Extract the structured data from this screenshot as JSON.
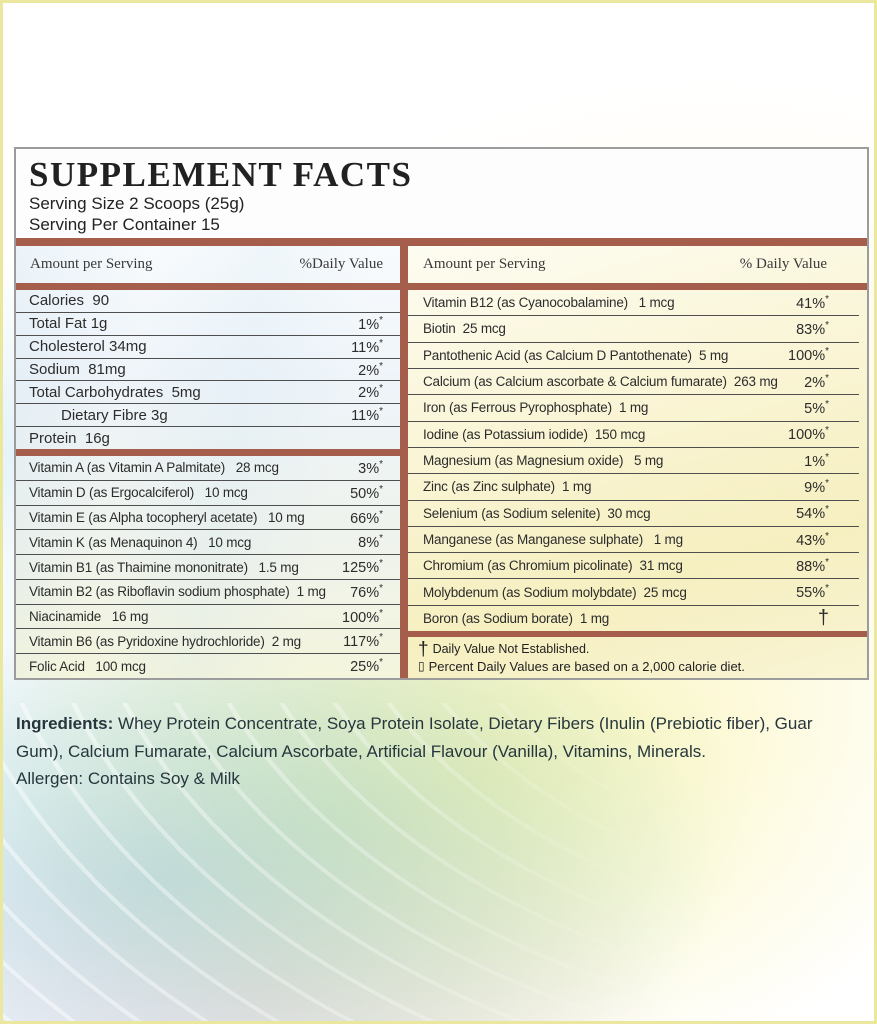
{
  "panel": {
    "title": "SUPPLEMENT FACTS",
    "serving_size": "Serving Size 2 Scoops (25g)",
    "serving_per_container": "Serving Per Container 15",
    "left": {
      "header_amount": "Amount per Serving",
      "header_dv": "%Daily Value",
      "macros": [
        {
          "name": "Calories  90",
          "dv": "",
          "sup": ""
        },
        {
          "name": "Total Fat 1g",
          "dv": "1%",
          "sup": "*"
        },
        {
          "name": "Cholesterol 34mg",
          "dv": "11%",
          "sup": "*"
        },
        {
          "name": "Sodium  81mg",
          "dv": "2%",
          "sup": "*"
        },
        {
          "name": "Total Carbohydrates  5mg",
          "dv": "2%",
          "sup": "*"
        },
        {
          "name": "Dietary Fibre 3g",
          "dv": "11%",
          "sup": "*",
          "cls": "indent"
        },
        {
          "name": "Protein  16g",
          "dv": "",
          "sup": ""
        }
      ],
      "vitamins": [
        {
          "name": "Vitamin A (as Vitamin A Palmitate)   28 mcg",
          "dv": "3%",
          "sup": "*"
        },
        {
          "name": "Vitamin D (as Ergocalciferol)   10 mcg",
          "dv": "50%",
          "sup": "*"
        },
        {
          "name": "Vitamin E (as Alpha tocopheryl acetate)   10 mg",
          "dv": "66%",
          "sup": "*"
        },
        {
          "name": "Vitamin K (as Menaquinon 4)   10 mcg",
          "dv": "8%",
          "sup": "*"
        },
        {
          "name": "Vitamin B1 (as Thaimine mononitrate)   1.5 mg",
          "dv": "125%",
          "sup": "*"
        },
        {
          "name": "Vitamin B2 (as Riboflavin sodium phosphate)  1 mg",
          "dv": "76%",
          "sup": "*"
        },
        {
          "name": "Niacinamide   16 mg",
          "dv": "100%",
          "sup": "*"
        },
        {
          "name": "Vitamin B6 (as Pyridoxine hydrochloride)  2 mg",
          "dv": "117%",
          "sup": "*"
        },
        {
          "name": "Folic Acid   100 mcg",
          "dv": "25%",
          "sup": "*"
        }
      ]
    },
    "right": {
      "header_amount": "Amount per Serving",
      "header_dv": "% Daily Value",
      "rows": [
        {
          "name": "Vitamin B12 (as Cyanocobalamine)   1 mcg",
          "dv": "41%",
          "sup": "*"
        },
        {
          "name": "Biotin  25 mcg",
          "dv": "83%",
          "sup": "*"
        },
        {
          "name": "Pantothenic Acid (as Calcium D Pantothenate)  5 mg",
          "dv": "100%",
          "sup": "*"
        },
        {
          "name": "Calcium (as Calcium ascorbate & Calcium fumarate)  263 mg",
          "dv": "2%",
          "sup": "*"
        },
        {
          "name": "Iron (as Ferrous Pyrophosphate)  1 mg",
          "dv": "5%",
          "sup": "*"
        },
        {
          "name": "Iodine (as Potassium iodide)  150 mcg",
          "dv": "100%",
          "sup": "*"
        },
        {
          "name": "Magnesium (as Magnesium oxide)   5 mg",
          "dv": "1%",
          "sup": "*"
        },
        {
          "name": "Zinc (as Zinc sulphate)  1 mg",
          "dv": "9%",
          "sup": "*"
        },
        {
          "name": "Selenium (as Sodium selenite)  30 mcg",
          "dv": "54%",
          "sup": "*"
        },
        {
          "name": "Manganese (as Manganese sulphate)   1 mg",
          "dv": "43%",
          "sup": "*"
        },
        {
          "name": "Chromium (as Chromium picolinate)  31 mcg",
          "dv": "88%",
          "sup": "*"
        },
        {
          "name": "Molybdenum (as Sodium molybdate)  25 mcg",
          "dv": "55%",
          "sup": "*"
        },
        {
          "name": "Boron (as Sodium borate)  1 mg",
          "dv": "†",
          "sup": "",
          "cls": "dv-dagger"
        }
      ],
      "footnotes": [
        {
          "sym": "†",
          "text": "Daily Value Not Established.",
          "cls": "fn-dagger"
        },
        {
          "sym": "▯",
          "text": "Percent Daily Values are based on a 2,000 calorie  diet.",
          "cls": "fn-box"
        }
      ]
    }
  },
  "ingredients": {
    "label": "Ingredients:",
    "text": " Whey Protein Concentrate, Soya Protein Isolate, Dietary Fibers (Inulin (Prebiotic fiber), Guar Gum), Calcium Fumarate, Calcium Ascorbate, Artificial Flavour (Vanilla),  Vitamins, Minerals."
  },
  "allergen": "Allergen: Contains Soy & Milk",
  "colors": {
    "bar_brown": "#a55e4b",
    "panel_border": "#9c9c9c",
    "page_border": "#ebe79f"
  }
}
